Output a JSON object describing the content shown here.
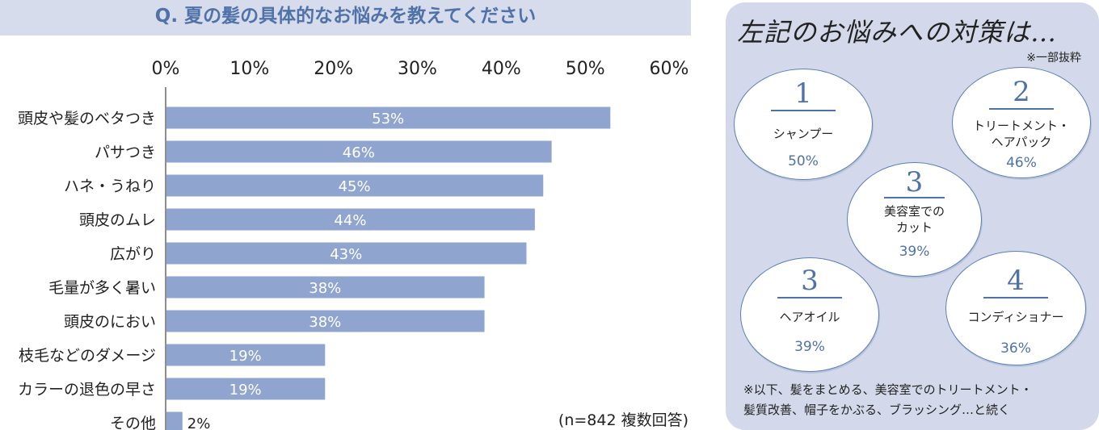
{
  "question_title": "Q. 夏の髪の具体的なお悩みを教えてください",
  "chart_data": {
    "type": "bar",
    "orientation": "horizontal",
    "title": "Q. 夏の髪の具体的なお悩みを教えてください",
    "categories": [
      "頭皮や髪のベタつき",
      "パサつき",
      "ハネ・うねり",
      "頭皮のムレ",
      "広がり",
      "毛量が多く暑い",
      "頭皮のにおい",
      "枝毛などのダメージ",
      "カラーの退色の早さ",
      "その他"
    ],
    "values": [
      53,
      46,
      45,
      44,
      43,
      38,
      38,
      19,
      19,
      2
    ],
    "value_labels": [
      "53%",
      "46%",
      "45%",
      "44%",
      "43%",
      "38%",
      "38%",
      "19%",
      "19%",
      "2%"
    ],
    "x_ticks": [
      "0%",
      "10%",
      "20%",
      "30%",
      "40%",
      "50%",
      "60%"
    ],
    "xlim": [
      0,
      60
    ],
    "axis_position": "top",
    "grid": false,
    "bar_color": "#8fa5cf",
    "note": "(n=842 複数回答)"
  },
  "panel": {
    "title": "左記のお悩みへの対策は…",
    "note": "※一部抜粋",
    "items": [
      {
        "rank": "1",
        "name": "シャンプー",
        "pct": "50%"
      },
      {
        "rank": "2",
        "name": "トリートメント・\nヘアパック",
        "pct": "46%"
      },
      {
        "rank": "3",
        "name": "美容室での\nカット",
        "pct": "39%"
      },
      {
        "rank": "3",
        "name": "ヘアオイル",
        "pct": "39%"
      },
      {
        "rank": "4",
        "name": "コンディショナー",
        "pct": "36%"
      }
    ],
    "footnote_line1": "※以下、髪をまとめる、美容室でのトリートメント・",
    "footnote_line2": "髪質改善、帽子をかぶる、ブラッシング…と続く"
  },
  "colors": {
    "accent": "#4f72a8",
    "bar": "#8fa5cf",
    "banner": "#d6dcec",
    "panel": "#d3d9ea"
  }
}
